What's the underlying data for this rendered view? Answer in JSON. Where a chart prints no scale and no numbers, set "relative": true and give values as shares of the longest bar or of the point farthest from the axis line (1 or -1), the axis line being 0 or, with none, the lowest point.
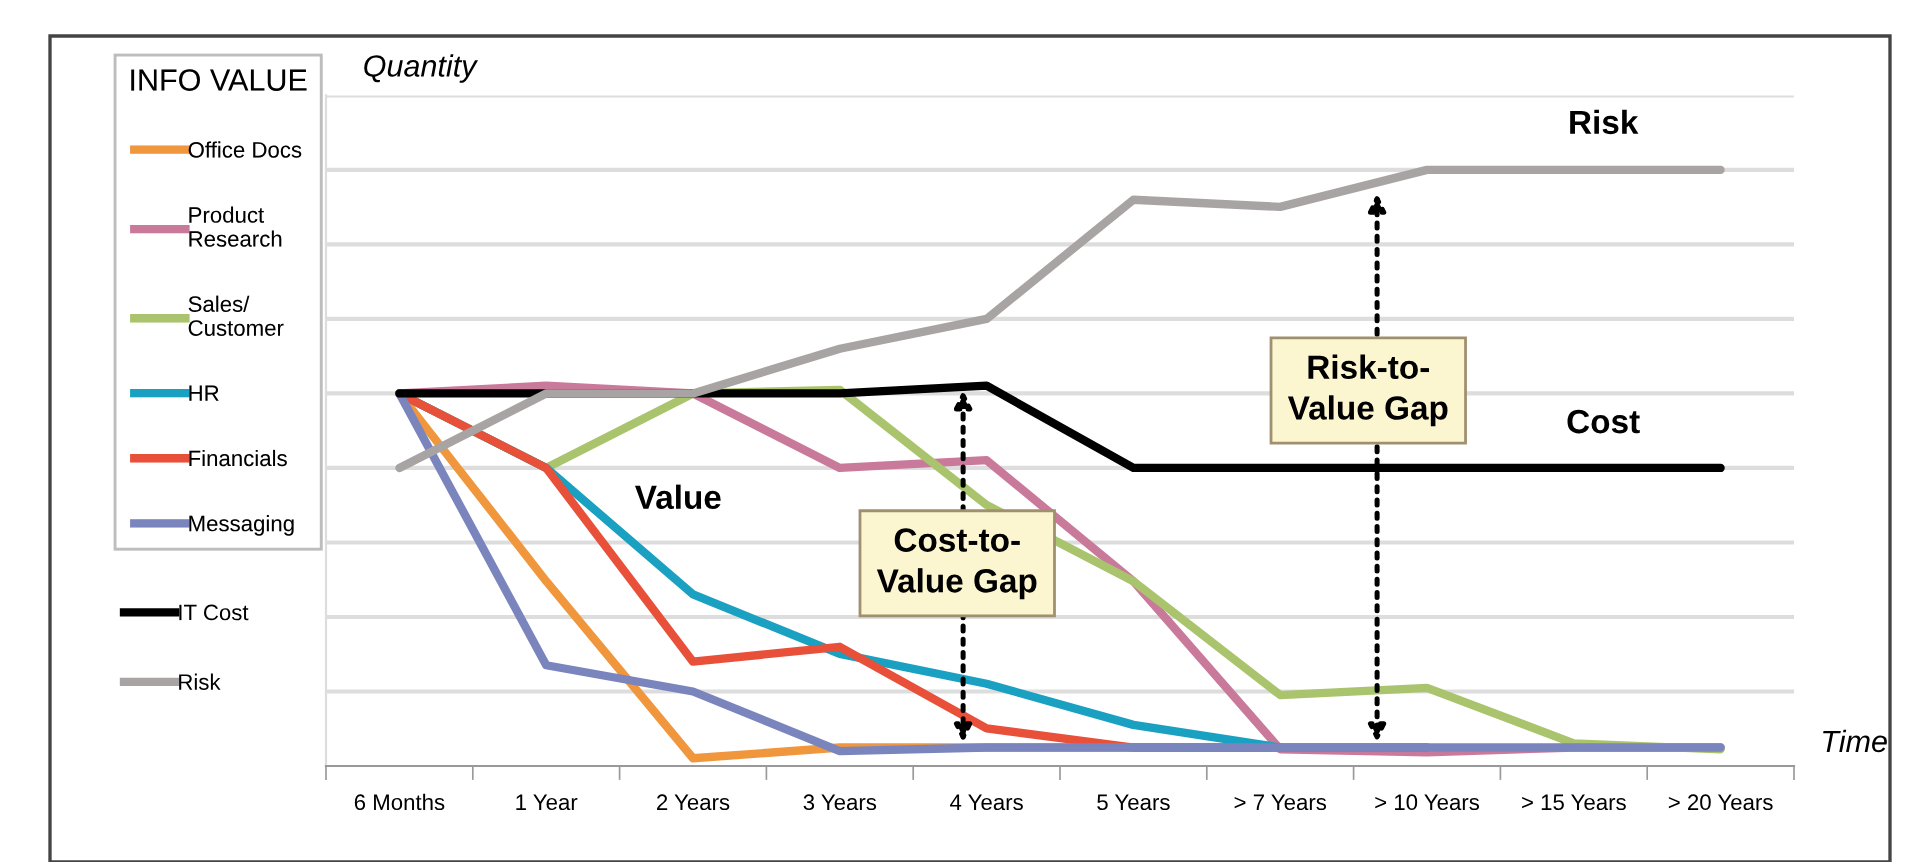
{
  "chart_data": {
    "type": "line",
    "relative": true,
    "ylabel": "Quantity",
    "xlabel": "Time",
    "legend_title": "INFO VALUE",
    "legend": "left",
    "grid": "y",
    "marker": "none",
    "line_style": "solid",
    "categories": [
      "6 Months",
      "1 Year",
      "2 Years",
      "3 Years",
      "4 Years",
      "5 Years",
      "> 7 Years",
      "> 10 Years",
      "> 15 Years",
      "> 20 Years"
    ],
    "series": [
      {
        "name": "Office Docs",
        "color": "#f0963c",
        "values": [
          0.625,
          0.31,
          0.013,
          0.031,
          0.031,
          0.031,
          0.031,
          null,
          null,
          null
        ]
      },
      {
        "name": "Product\nResearch",
        "color": "#c97a9a",
        "values": [
          0.625,
          0.638,
          0.625,
          0.5,
          0.513,
          0.31,
          0.028,
          0.023,
          0.031,
          0.031
        ]
      },
      {
        "name": "Sales/\nCustomer",
        "color": "#a9c46c",
        "values": [
          0.625,
          0.5,
          0.625,
          0.631,
          0.438,
          0.31,
          0.119,
          0.131,
          0.038,
          0.028
        ]
      },
      {
        "name": "HR",
        "color": "#1aa0c0",
        "values": [
          0.625,
          0.5,
          0.288,
          0.188,
          0.138,
          0.069,
          0.031,
          0.031,
          null,
          null
        ]
      },
      {
        "name": "Financials",
        "color": "#e8503a",
        "values": [
          0.625,
          0.5,
          0.175,
          0.2,
          0.063,
          0.031,
          0.031,
          null,
          null,
          null
        ]
      },
      {
        "name": "Messaging",
        "color": "#7a85bd",
        "values": [
          0.625,
          0.169,
          0.125,
          0.025,
          0.031,
          0.031,
          0.031,
          0.031,
          0.031,
          0.031
        ]
      },
      {
        "name": "IT Cost",
        "color": "#000000",
        "values": [
          0.625,
          0.625,
          0.625,
          0.625,
          0.638,
          0.5,
          0.5,
          0.5,
          0.5,
          0.5
        ]
      },
      {
        "name": "Risk",
        "color": "#a9a4a4",
        "values": [
          0.5,
          0.625,
          0.625,
          0.7,
          0.75,
          0.95,
          0.938,
          1.0,
          1.0,
          1.0
        ]
      }
    ],
    "annotations": [
      "Risk",
      "Cost",
      "Value",
      "Cost-to-\nValue Gap",
      "Risk-to-\nValue Gap"
    ]
  }
}
